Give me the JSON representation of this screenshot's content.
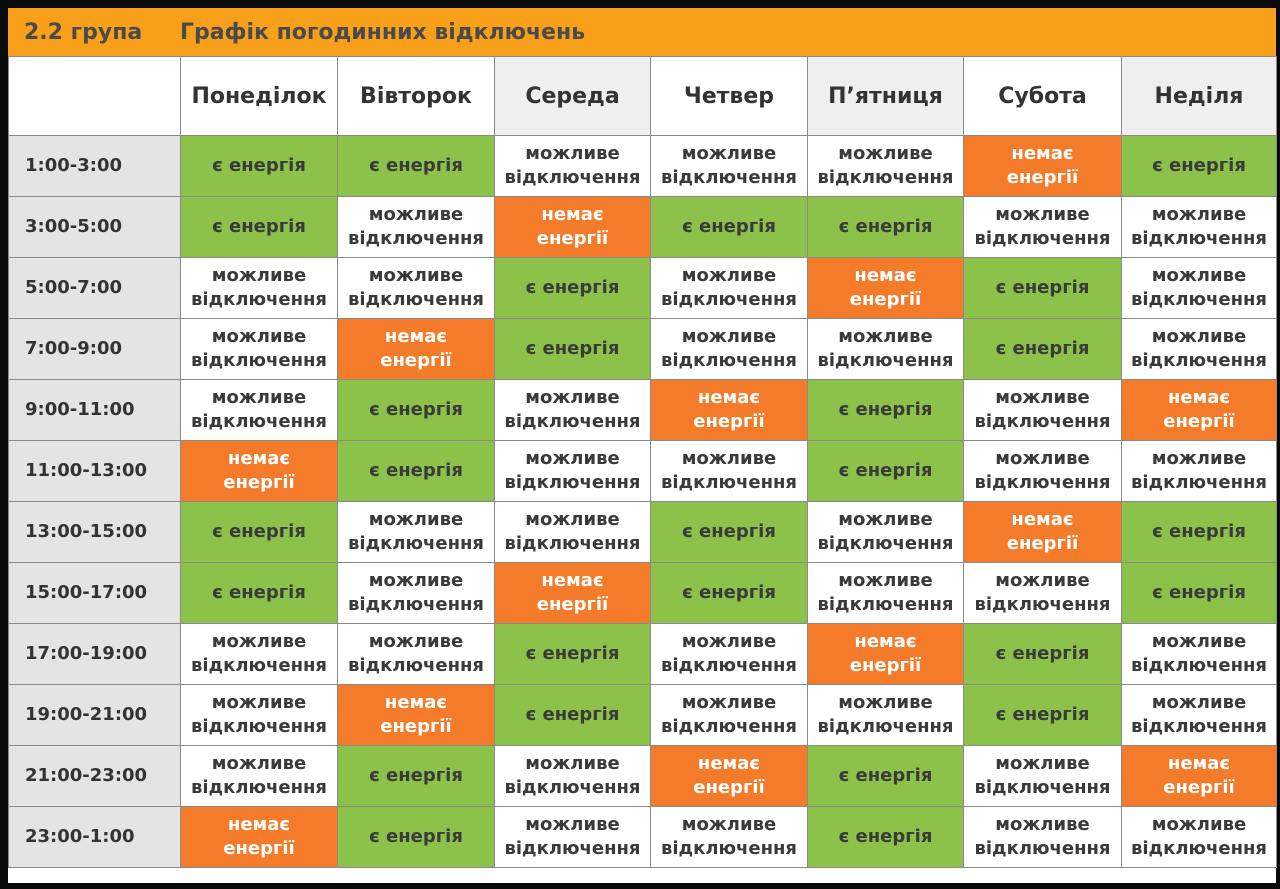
{
  "header": {
    "group": "2.2 група",
    "title": "Графік погодинних відключень",
    "bg_color": "#f9a01b"
  },
  "colors": {
    "power": "#8dc24a",
    "possible_outage": "#ffffff",
    "no_power": "#f47b2a"
  },
  "days": [
    "Понеділок",
    "Вівторок",
    "Середа",
    "Четвер",
    "П’ятниця",
    "Субота",
    "Неділя"
  ],
  "status_labels": {
    "P": [
      "є енергія"
    ],
    "M": [
      "можливе",
      "відключення"
    ],
    "N": [
      "немає",
      "енергії"
    ]
  },
  "rows": [
    {
      "time": "1:00-3:00",
      "cells": [
        "P",
        "P",
        "M",
        "M",
        "M",
        "N",
        "P"
      ]
    },
    {
      "time": "3:00-5:00",
      "cells": [
        "P",
        "M",
        "N",
        "P",
        "P",
        "M",
        "M"
      ]
    },
    {
      "time": "5:00-7:00",
      "cells": [
        "M",
        "M",
        "P",
        "M",
        "N",
        "P",
        "M"
      ]
    },
    {
      "time": "7:00-9:00",
      "cells": [
        "M",
        "N",
        "P",
        "M",
        "M",
        "P",
        "M"
      ]
    },
    {
      "time": "9:00-11:00",
      "cells": [
        "M",
        "P",
        "M",
        "N",
        "P",
        "M",
        "N"
      ]
    },
    {
      "time": "11:00-13:00",
      "cells": [
        "N",
        "P",
        "M",
        "M",
        "P",
        "M",
        "M"
      ]
    },
    {
      "time": "13:00-15:00",
      "cells": [
        "P",
        "M",
        "M",
        "P",
        "M",
        "N",
        "P"
      ]
    },
    {
      "time": "15:00-17:00",
      "cells": [
        "P",
        "M",
        "N",
        "P",
        "M",
        "M",
        "P"
      ]
    },
    {
      "time": "17:00-19:00",
      "cells": [
        "M",
        "M",
        "P",
        "M",
        "N",
        "P",
        "M"
      ]
    },
    {
      "time": "19:00-21:00",
      "cells": [
        "M",
        "N",
        "P",
        "M",
        "M",
        "P",
        "M"
      ]
    },
    {
      "time": "21:00-23:00",
      "cells": [
        "M",
        "P",
        "M",
        "N",
        "P",
        "M",
        "N"
      ]
    },
    {
      "time": "23:00-1:00",
      "cells": [
        "N",
        "P",
        "M",
        "M",
        "P",
        "M",
        "M"
      ]
    }
  ]
}
